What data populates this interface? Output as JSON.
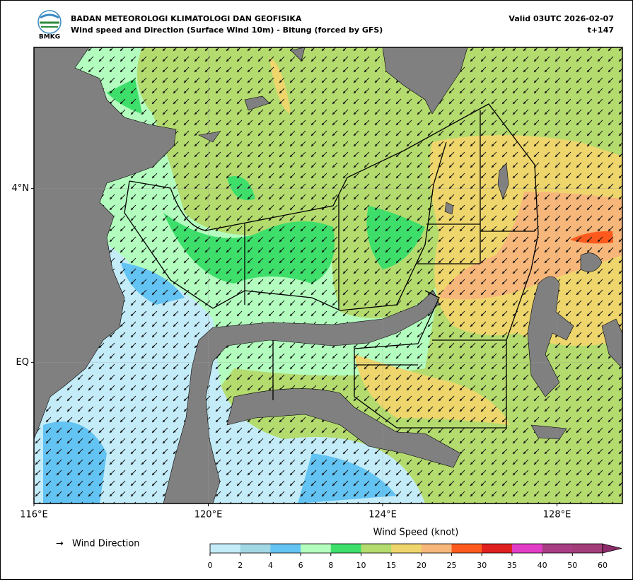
{
  "header": {
    "org": "BADAN METEOROLOGI KLIMATOLOGI DAN GEOFISIKA",
    "subtitle": "Wind speed and Direction (Surface Wind 10m) - Bitung (forced by GFS)",
    "valid": "Valid 03UTC 2026-02-07",
    "step": "t+147",
    "logo": "BMKG"
  },
  "map": {
    "xlim": [
      116,
      129.5
    ],
    "ylim": [
      -3.25,
      7.25
    ],
    "xticks": [
      {
        "value": 116,
        "label": "116°E"
      },
      {
        "value": 120,
        "label": "120°E"
      },
      {
        "value": 124,
        "label": "124°E"
      },
      {
        "value": 128,
        "label": "128°E"
      }
    ],
    "yticks": [
      {
        "value": 4,
        "label": "4°N"
      },
      {
        "value": 0,
        "label": "EQ"
      }
    ],
    "grid": true
  },
  "legend": {
    "symbol": "→",
    "label": "Wind Direction"
  },
  "colorbar": {
    "label": "Wind Speed (knot)",
    "ticks": [
      0,
      2,
      4,
      6,
      8,
      10,
      15,
      20,
      25,
      30,
      35,
      40,
      50,
      60
    ],
    "colors": [
      "#c4ecf8",
      "#a2d7e4",
      "#63c3f3",
      "#b3fdbf",
      "#3ddf6a",
      "#b4db6e",
      "#eed66c",
      "#f7b77a",
      "#fe5a1e",
      "#e01f1f",
      "#e23cc7",
      "#a83d84",
      "#a33d79"
    ],
    "extend_color": "#8c2a6a"
  }
}
